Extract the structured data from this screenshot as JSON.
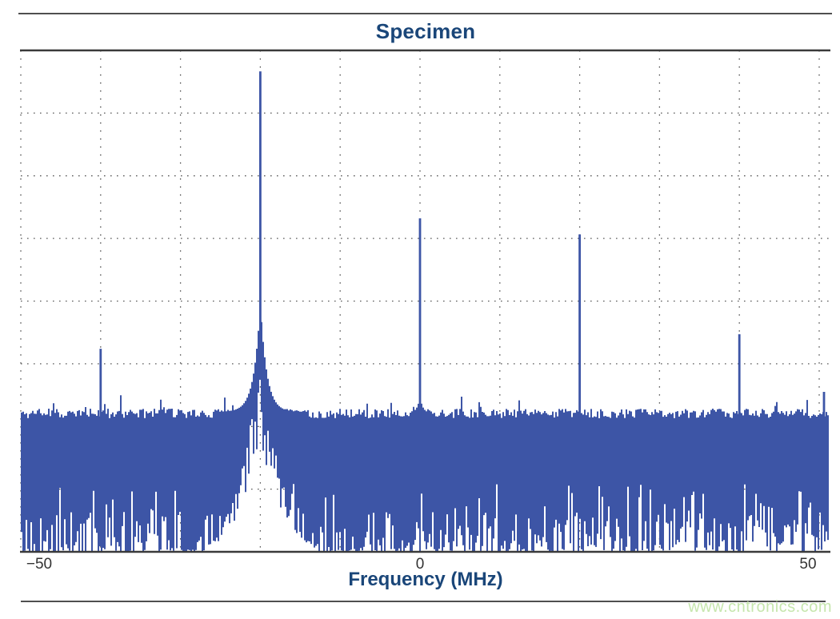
{
  "page": {
    "watermark": "www.cntronics.com"
  },
  "chart_data": {
    "type": "line",
    "title": "Specimen",
    "xlabel": "Frequency (MHz)",
    "ylabel": "",
    "x_unit": "MHz",
    "x_range": [
      -50,
      51.4
    ],
    "x_gridline_step_mhz": 10,
    "x_ticks": [
      {
        "label": "−50",
        "f": -50
      },
      {
        "label": "0",
        "f": 0
      },
      {
        "label": "50",
        "f": 50
      }
    ],
    "y_axis_labels_visible": false,
    "h_gridline_divisions": 8,
    "grid_style": "dotted",
    "noise_floor_frac": 0.276,
    "peaks": [
      {
        "f": -40,
        "height_frac": 0.405,
        "skirt": false
      },
      {
        "f": -20,
        "height_frac": 0.958,
        "skirt": true
      },
      {
        "f": 0,
        "height_frac": 0.665,
        "skirt": false
      },
      {
        "f": 20,
        "height_frac": 0.633,
        "skirt": false
      },
      {
        "f": 40,
        "height_frac": 0.434,
        "skirt": false
      },
      {
        "f": 50.6,
        "height_frac": 0.319,
        "skirt": false
      }
    ],
    "colors": {
      "trace": "#3d55a6",
      "title": "#1a4679",
      "grid": "#5a5a5a",
      "frame": "#3a3a3a",
      "tick_label": "#333333",
      "watermark": "#c6e6ad"
    }
  }
}
